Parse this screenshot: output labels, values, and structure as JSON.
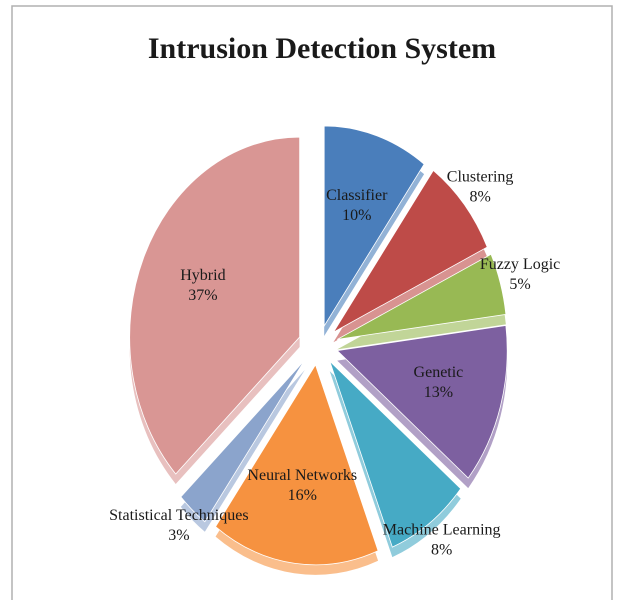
{
  "chart_data": {
    "type": "pie",
    "title": "Intrusion Detection System",
    "categories": [
      "Classifier",
      "Clustering",
      "Fuzzy Logic",
      "Genetic",
      "Machine Learning",
      "Neural Networks",
      "Statistical Techniques",
      "Hybrid"
    ],
    "values": [
      10,
      8,
      5,
      13,
      8,
      16,
      3,
      37
    ],
    "value_labels": [
      "10%",
      "8%",
      "5%",
      "13%",
      "8%",
      "16%",
      "3%",
      "37%"
    ],
    "colors": [
      "#4a7ebb",
      "#be4b48",
      "#98b954",
      "#7d60a0",
      "#46aac5",
      "#f69240",
      "#8ba4cc",
      "#d99694"
    ]
  }
}
